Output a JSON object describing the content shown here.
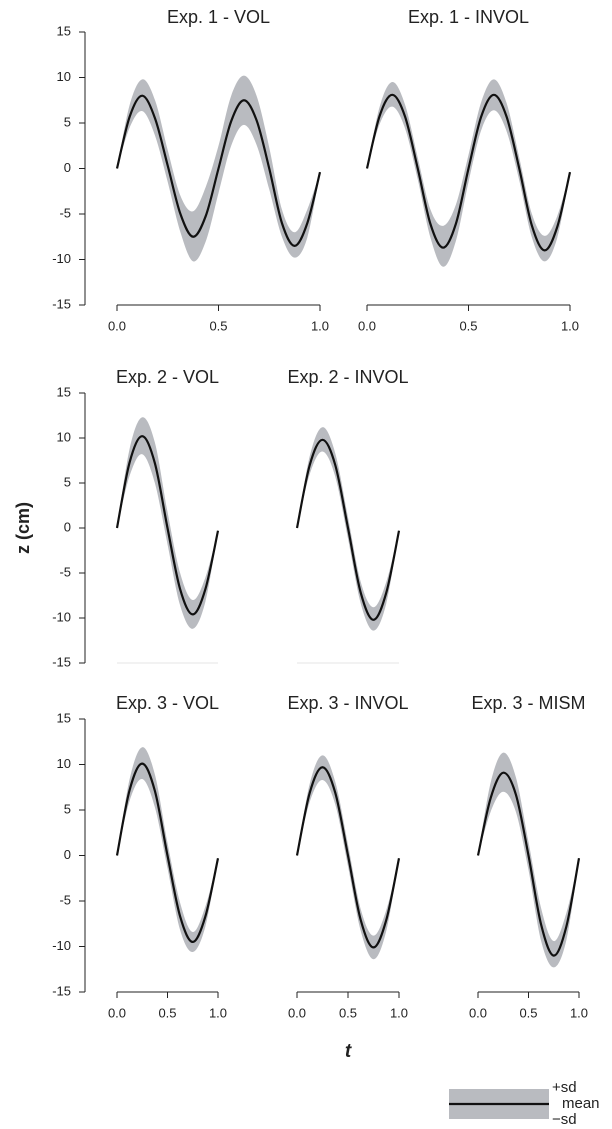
{
  "y_label": "z (cm)",
  "x_label": "t",
  "legend": {
    "labels": [
      "+sd",
      "mean",
      "−sd"
    ],
    "band_color": "#b9bbc0",
    "line_color": "#111111"
  },
  "chart_data": [
    {
      "type": "band-line",
      "title": "Exp. 1 - VOL",
      "band_color": "#b9bbc0",
      "line_color": "#111111",
      "x": [
        0,
        0.0625,
        0.125,
        0.1875,
        0.25,
        0.3125,
        0.375,
        0.4375,
        0.5,
        0.5625,
        0.625,
        0.6875,
        0.75,
        0.8125,
        0.875,
        0.9375,
        1
      ],
      "mean": [
        0,
        5.7,
        8,
        5.5,
        0.3,
        -5,
        -7.5,
        -5.2,
        0,
        5.2,
        7.5,
        5.3,
        0,
        -6,
        -8.5,
        -6,
        -0.4
      ],
      "upper": [
        0,
        7,
        9.8,
        7.5,
        2,
        -3,
        -4.7,
        -2,
        2.5,
        8,
        10.2,
        8,
        2.3,
        -4.5,
        -7,
        -4.5,
        -0.4
      ],
      "lower": [
        0,
        4.5,
        6.3,
        3.6,
        -1.5,
        -7,
        -10.2,
        -8,
        -2.7,
        2.5,
        4.8,
        2.6,
        -2.3,
        -7.5,
        -9.8,
        -7.6,
        -0.4
      ],
      "xlim": [
        0,
        1
      ],
      "xticks": [
        {
          "value": 0,
          "label": "0.0"
        },
        {
          "value": 0.5,
          "label": "0.5"
        },
        {
          "value": 1,
          "label": "1.0"
        }
      ],
      "ylim": [
        -15,
        15
      ],
      "yticks": [
        -15,
        -10,
        -5,
        0,
        5,
        10,
        15
      ]
    },
    {
      "type": "band-line",
      "title": "Exp. 1 - INVOL",
      "band_color": "#b9bbc0",
      "line_color": "#111111",
      "x": [
        0,
        0.0625,
        0.125,
        0.1875,
        0.25,
        0.3125,
        0.375,
        0.4375,
        0.5,
        0.5625,
        0.625,
        0.6875,
        0.75,
        0.8125,
        0.875,
        0.9375,
        1
      ],
      "mean": [
        0,
        5.8,
        8.1,
        5.7,
        0,
        -6.1,
        -8.7,
        -6.1,
        0,
        5.7,
        8.1,
        5.7,
        0,
        -6.3,
        -9,
        -6.4,
        -0.4
      ],
      "upper": [
        0,
        6.8,
        9.5,
        7,
        1.2,
        -4.5,
        -6.3,
        -4,
        1.5,
        7.3,
        9.8,
        7.2,
        1.2,
        -5,
        -7.4,
        -5.2,
        -0.4
      ],
      "lower": [
        0,
        4.9,
        6.8,
        4.4,
        -1.2,
        -7.6,
        -10.8,
        -8,
        -1.5,
        4.2,
        6.4,
        4.1,
        -1.3,
        -7.6,
        -10.2,
        -7.6,
        -0.4
      ],
      "xlim": [
        0,
        1
      ],
      "xticks": [
        {
          "value": 0,
          "label": "0.0"
        },
        {
          "value": 0.5,
          "label": "0.5"
        },
        {
          "value": 1,
          "label": "1.0"
        }
      ],
      "ylim": [
        -15,
        15
      ]
    },
    {
      "type": "band-line",
      "title": "Exp. 2 - VOL",
      "band_color": "#b9bbc0",
      "line_color": "#111111",
      "x": [
        0,
        0.125,
        0.25,
        0.375,
        0.5,
        0.625,
        0.75,
        0.875,
        1
      ],
      "mean": [
        0,
        7.3,
        10.2,
        7.2,
        0,
        -6.8,
        -9.6,
        -6.8,
        -0.3
      ],
      "upper": [
        0,
        8.8,
        12.3,
        9.5,
        1.8,
        -5,
        -8,
        -5.5,
        -0.3
      ],
      "lower": [
        0,
        5.8,
        8.2,
        5,
        -1.8,
        -8.6,
        -11.2,
        -8.2,
        -0.3
      ],
      "xlim": [
        0,
        1
      ],
      "ylim": [
        -15,
        15
      ],
      "yticks": [
        -15,
        -10,
        -5,
        0,
        5,
        10,
        15
      ]
    },
    {
      "type": "band-line",
      "title": "Exp. 2 - INVOL",
      "band_color": "#b9bbc0",
      "line_color": "#111111",
      "x": [
        0,
        0.125,
        0.25,
        0.375,
        0.5,
        0.625,
        0.75,
        0.875,
        1
      ],
      "mean": [
        0,
        7,
        9.8,
        7,
        0,
        -7.2,
        -10.2,
        -7.2,
        -0.3
      ],
      "upper": [
        0,
        8,
        11.2,
        8.3,
        1.2,
        -6,
        -8.8,
        -6,
        -0.3
      ],
      "lower": [
        0,
        6,
        8.5,
        5.7,
        -1.2,
        -8.4,
        -11.4,
        -8.4,
        -0.3
      ],
      "xlim": [
        0,
        1
      ],
      "ylim": [
        -15,
        15
      ]
    },
    {
      "type": "band-line",
      "title": "Exp. 3 - VOL",
      "band_color": "#b9bbc0",
      "line_color": "#111111",
      "x": [
        0,
        0.125,
        0.25,
        0.375,
        0.5,
        0.625,
        0.75,
        0.875,
        1
      ],
      "mean": [
        0,
        7.2,
        10.1,
        7.1,
        0,
        -6.7,
        -9.5,
        -6.7,
        -0.3
      ],
      "upper": [
        0,
        8.4,
        11.9,
        8.9,
        1.4,
        -5.2,
        -8.4,
        -5.6,
        -0.3
      ],
      "lower": [
        0,
        6,
        8.4,
        5.3,
        -1.4,
        -8.2,
        -10.6,
        -7.8,
        -0.3
      ],
      "xlim": [
        0,
        1
      ],
      "xticks": [
        {
          "value": 0,
          "label": "0.0"
        },
        {
          "value": 0.5,
          "label": "0.5"
        },
        {
          "value": 1,
          "label": "1.0"
        }
      ],
      "ylim": [
        -15,
        15
      ],
      "yticks": [
        -15,
        -10,
        -5,
        0,
        5,
        10,
        15
      ]
    },
    {
      "type": "band-line",
      "title": "Exp. 3 - INVOL",
      "band_color": "#b9bbc0",
      "line_color": "#111111",
      "x": [
        0,
        0.125,
        0.25,
        0.375,
        0.5,
        0.625,
        0.75,
        0.875,
        1
      ],
      "mean": [
        0,
        6.9,
        9.7,
        6.9,
        0,
        -7.1,
        -10.1,
        -7.1,
        -0.3
      ],
      "upper": [
        0,
        7.9,
        11,
        8.1,
        1.2,
        -5.9,
        -8.8,
        -6,
        -0.3
      ],
      "lower": [
        0,
        5.9,
        8.3,
        5.6,
        -1.2,
        -8.3,
        -11.4,
        -8.3,
        -0.3
      ],
      "xlim": [
        0,
        1
      ],
      "xticks": [
        {
          "value": 0,
          "label": "0.0"
        },
        {
          "value": 0.5,
          "label": "0.5"
        },
        {
          "value": 1,
          "label": "1.0"
        }
      ],
      "ylim": [
        -15,
        15
      ]
    },
    {
      "type": "band-line",
      "title": "Exp. 3 - MISM",
      "band_color": "#b9bbc0",
      "line_color": "#111111",
      "x": [
        0,
        0.125,
        0.25,
        0.375,
        0.5,
        0.625,
        0.75,
        0.875,
        1
      ],
      "mean": [
        0,
        6.3,
        9.1,
        6.7,
        0,
        -7.6,
        -11,
        -7.8,
        -0.3
      ],
      "upper": [
        0,
        8,
        11.3,
        8.6,
        1.5,
        -5.8,
        -9.4,
        -6.3,
        -0.3
      ],
      "lower": [
        0,
        4.8,
        7,
        4.8,
        -1.6,
        -9.4,
        -12.3,
        -9.3,
        -0.3
      ],
      "xlim": [
        0,
        1
      ],
      "xticks": [
        {
          "value": 0,
          "label": "0.0"
        },
        {
          "value": 0.5,
          "label": "0.5"
        },
        {
          "value": 1,
          "label": "1.0"
        }
      ],
      "ylim": [
        -15,
        15
      ]
    }
  ]
}
